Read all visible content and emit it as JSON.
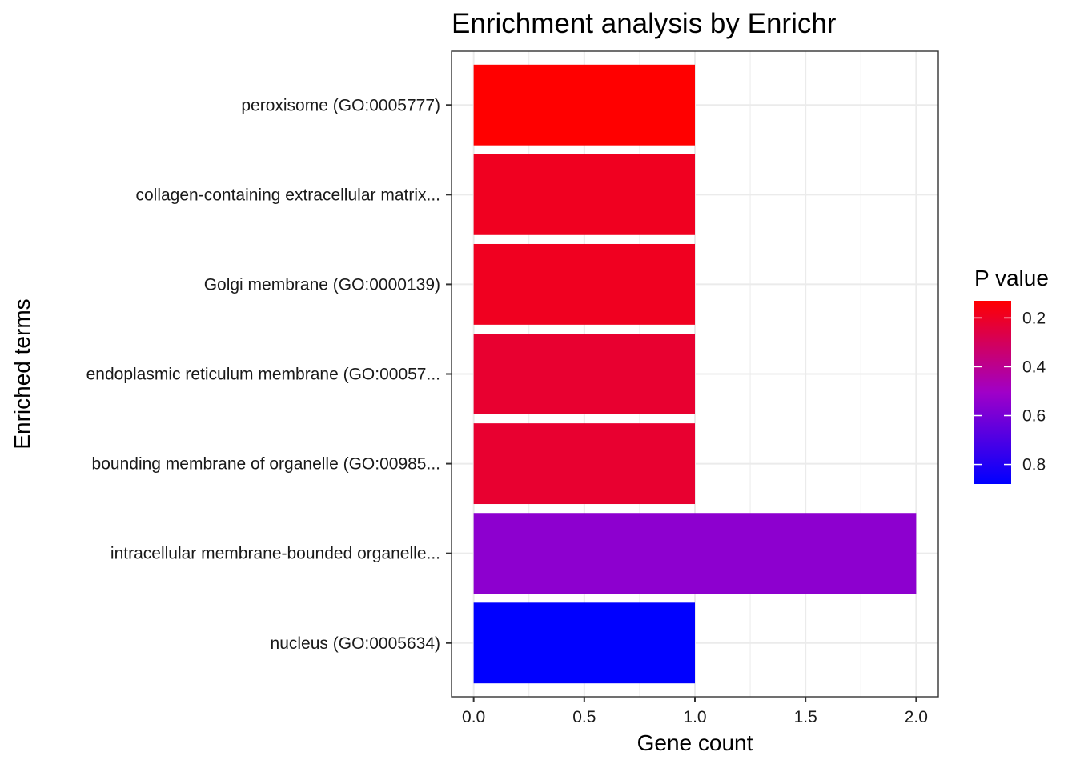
{
  "chart_data": {
    "type": "bar",
    "orientation": "horizontal",
    "title": "Enrichment analysis by Enrichr",
    "xlabel": "Gene count",
    "ylabel": "Enriched terms",
    "xlim": [
      -0.1,
      2.1
    ],
    "xticks": [
      0.0,
      0.5,
      1.0,
      1.5,
      2.0
    ],
    "xtick_labels": [
      "0.0",
      "0.5",
      "1.0",
      "1.5",
      "2.0"
    ],
    "categories": [
      "peroxisome (GO:0005777)",
      "collagen-containing extracellular matrix...",
      "Golgi membrane (GO:0000139)",
      "endoplasmic reticulum membrane (GO:00057...",
      "bounding membrane of organelle (GO:00985...",
      "intracellular membrane-bounded organelle...",
      "nucleus (GO:0005634)"
    ],
    "values": [
      1,
      1,
      1,
      1,
      1,
      2,
      1
    ],
    "p_values": [
      0.13,
      0.19,
      0.19,
      0.22,
      0.22,
      0.55,
      0.88
    ],
    "grid": true,
    "legend": {
      "title": "P value",
      "position": "right",
      "min": 0.13,
      "max": 0.88,
      "ticks": [
        0.2,
        0.4,
        0.6,
        0.8
      ],
      "tick_labels": [
        "0.2",
        "0.4",
        "0.6",
        "0.8"
      ],
      "low_color": "#ff0000",
      "high_color": "#0000ff"
    }
  }
}
